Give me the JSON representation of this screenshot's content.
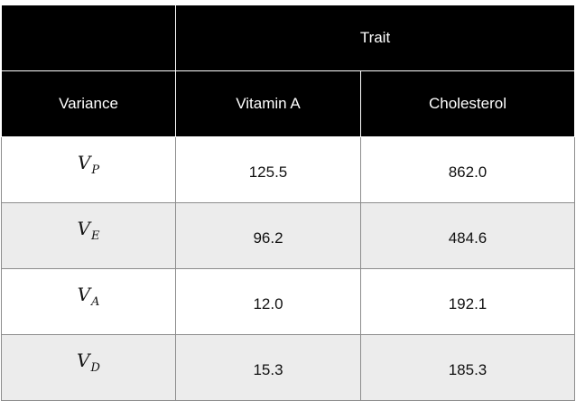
{
  "table": {
    "header_top": "Trait",
    "columns": [
      "Variance",
      "Vitamin A",
      "Cholesterol"
    ],
    "rows": [
      {
        "symbol": "V",
        "subscript": "P",
        "vitamin_a": "125.5",
        "cholesterol": "862.0"
      },
      {
        "symbol": "V",
        "subscript": "E",
        "vitamin_a": "96.2",
        "cholesterol": "484.6"
      },
      {
        "symbol": "V",
        "subscript": "A",
        "vitamin_a": "12.0",
        "cholesterol": "192.1"
      },
      {
        "symbol": "V",
        "subscript": "D",
        "vitamin_a": "15.3",
        "cholesterol": "185.3"
      }
    ]
  }
}
